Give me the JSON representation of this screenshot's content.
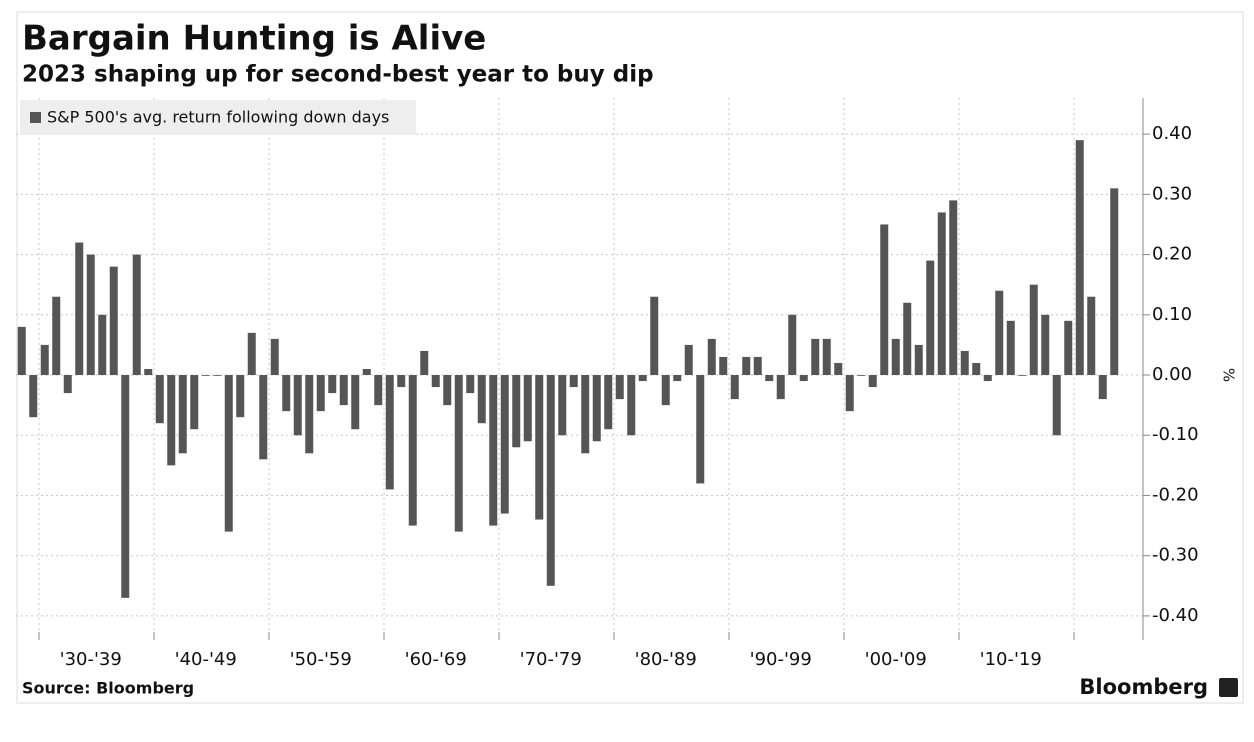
{
  "chart_data": {
    "type": "bar",
    "title": "Bargain Hunting is Alive",
    "subtitle": "2023 shaping up for second-best year to buy dip",
    "legend_label": "S&P 500's avg. return following down days",
    "y_axis_label": "%",
    "source": "Source: Bloomberg",
    "brand": "Bloomberg",
    "color": "#555555",
    "grid": true,
    "categories": [
      null,
      null,
      null,
      null,
      null,
      null,
      "'30-'39",
      null,
      null,
      null,
      null,
      null,
      null,
      null,
      null,
      null,
      "'40-'49",
      null,
      null,
      null,
      null,
      null,
      null,
      null,
      null,
      null,
      "'50-'59",
      null,
      null,
      null,
      null,
      null,
      null,
      null,
      null,
      null,
      "'60-'69",
      null,
      null,
      null,
      null,
      null,
      null,
      null,
      null,
      null,
      "'70-'79",
      null,
      null,
      null,
      null,
      null,
      null,
      null,
      null,
      null,
      "'80-'89",
      null,
      null,
      null,
      null,
      null,
      null,
      null,
      null,
      null,
      "'90-'99",
      null,
      null,
      null,
      null,
      null,
      null,
      null,
      null,
      null,
      "'00-'09",
      null,
      null,
      null,
      null,
      null,
      null,
      null,
      null,
      null,
      "'10-'19",
      null,
      null,
      null,
      null,
      null,
      null,
      null,
      null,
      null
    ],
    "values": [
      0.08,
      -0.07,
      0.05,
      0.13,
      -0.03,
      0.22,
      0.2,
      0.1,
      0.18,
      -0.37,
      0.2,
      0.01,
      -0.08,
      -0.15,
      -0.13,
      -0.09,
      0.0,
      0.0,
      -0.26,
      -0.07,
      0.07,
      -0.14,
      0.06,
      -0.06,
      -0.1,
      -0.13,
      -0.06,
      -0.03,
      -0.05,
      -0.09,
      0.01,
      -0.05,
      -0.19,
      -0.02,
      -0.25,
      0.04,
      -0.02,
      -0.05,
      -0.26,
      -0.03,
      -0.08,
      -0.25,
      -0.23,
      -0.12,
      -0.11,
      -0.24,
      -0.35,
      -0.1,
      -0.02,
      -0.13,
      -0.11,
      -0.09,
      -0.04,
      -0.1,
      -0.01,
      0.13,
      -0.05,
      -0.01,
      0.05,
      -0.18,
      0.06,
      0.03,
      -0.04,
      0.03,
      0.03,
      -0.01,
      -0.04,
      0.1,
      -0.01,
      0.06,
      0.06,
      0.02,
      -0.06,
      0.0,
      -0.02,
      0.25,
      0.06,
      0.12,
      0.05,
      0.19,
      0.27,
      0.29,
      0.04,
      0.02,
      -0.01,
      0.14,
      0.09,
      0.0,
      0.15,
      0.1,
      -0.1,
      0.09,
      0.39,
      0.13,
      -0.04,
      0.31
    ],
    "ylim": [
      -0.44,
      0.46
    ],
    "yticks": [
      {
        "value": 0.4,
        "label": "0.40"
      },
      {
        "value": 0.3,
        "label": "0.30"
      },
      {
        "value": 0.2,
        "label": "0.20"
      },
      {
        "value": 0.1,
        "label": "0.10"
      },
      {
        "value": 0,
        "label": "0.00"
      },
      {
        "value": -0.1,
        "label": "-0.10"
      },
      {
        "value": -0.2,
        "label": "-0.20"
      },
      {
        "value": -0.3,
        "label": "-0.30"
      },
      {
        "value": -0.4,
        "label": "-0.40"
      }
    ]
  }
}
